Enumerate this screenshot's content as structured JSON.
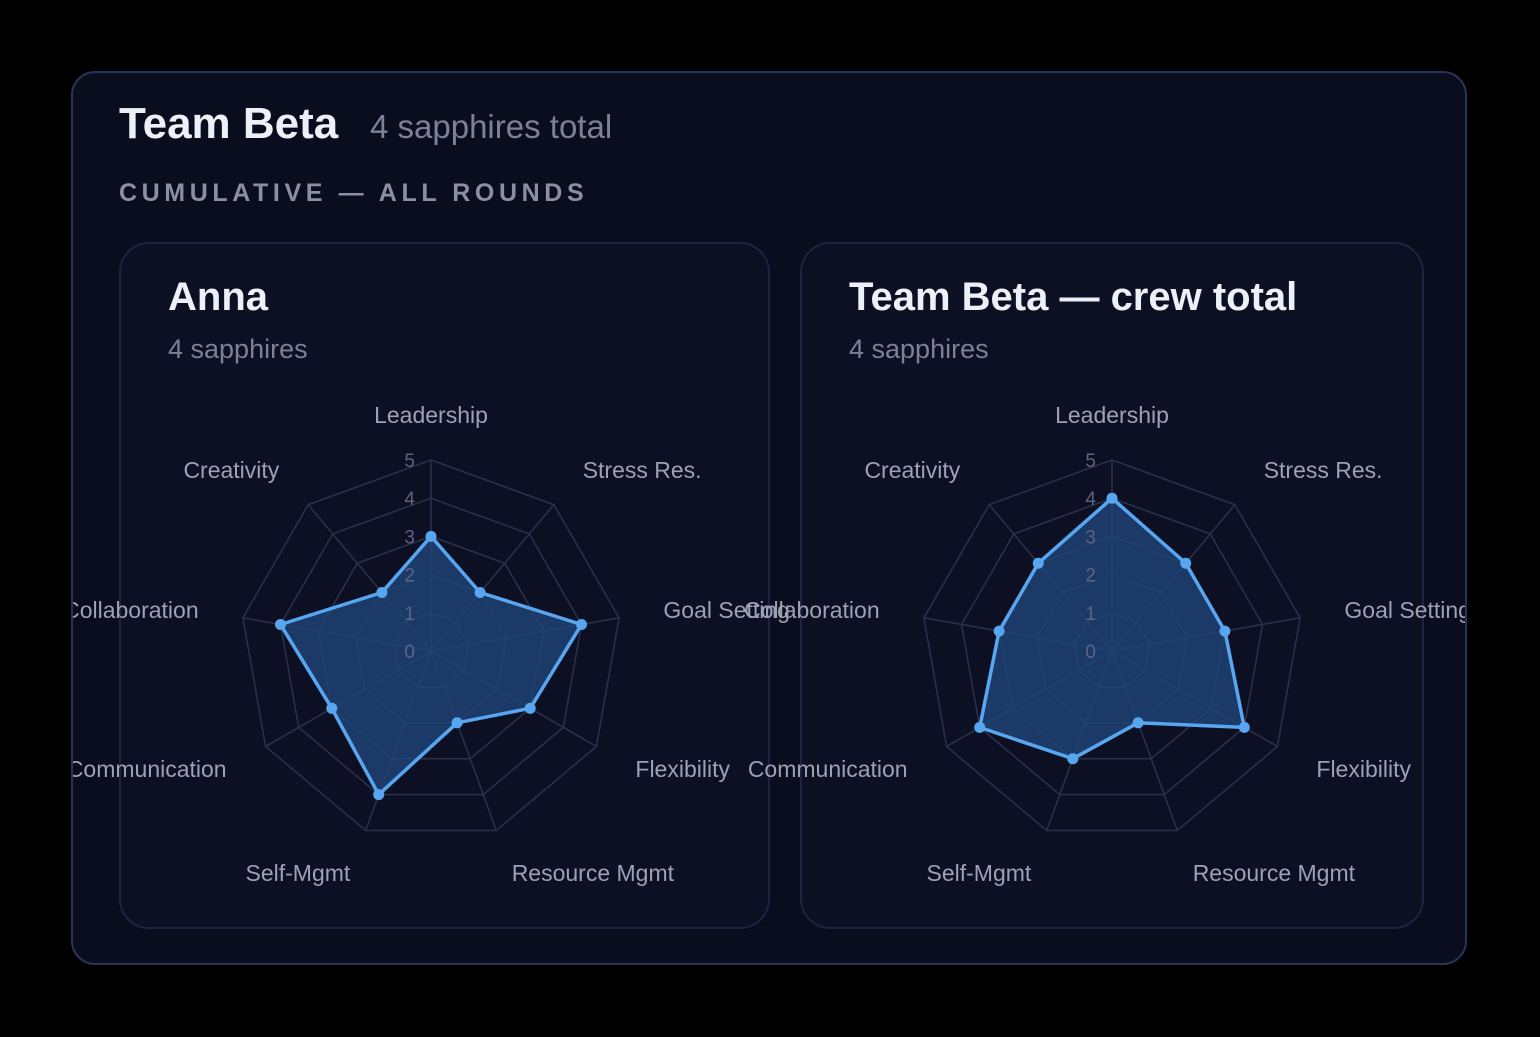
{
  "header": {
    "title": "Team Beta",
    "subtitle": "4 sapphires total",
    "section_label": "CUMULATIVE — ALL ROUNDS"
  },
  "cards": [
    {
      "title": "Anna",
      "subtitle": "4 sapphires"
    },
    {
      "title": "Team Beta — crew total",
      "subtitle": "4 sapphires"
    }
  ],
  "colors": {
    "accent": "#58a6f0",
    "fill": "#1f4478",
    "grid": "#2a2f4a",
    "background": "#0a0d1e"
  },
  "chart_data": [
    {
      "type": "radar",
      "axes": [
        "Leadership",
        "Stress Res.",
        "Goal Setting",
        "Flexibility",
        "Resource Mgmt",
        "Self-Mgmt",
        "Communication",
        "Collaboration",
        "Creativity"
      ],
      "rticks": [
        0,
        1,
        2,
        3,
        4,
        5
      ],
      "rlim": [
        0,
        5
      ],
      "series": [
        {
          "values": [
            3,
            2,
            4,
            3,
            2,
            4,
            3,
            4,
            2
          ]
        }
      ]
    },
    {
      "type": "radar",
      "axes": [
        "Leadership",
        "Stress Res.",
        "Goal Setting",
        "Flexibility",
        "Resource Mgmt",
        "Self-Mgmt",
        "Communication",
        "Collaboration",
        "Creativity"
      ],
      "rticks": [
        0,
        1,
        2,
        3,
        4,
        5
      ],
      "rlim": [
        0,
        5
      ],
      "series": [
        {
          "values": [
            4,
            3,
            3,
            4,
            2,
            3,
            4,
            3,
            3
          ]
        }
      ]
    }
  ]
}
